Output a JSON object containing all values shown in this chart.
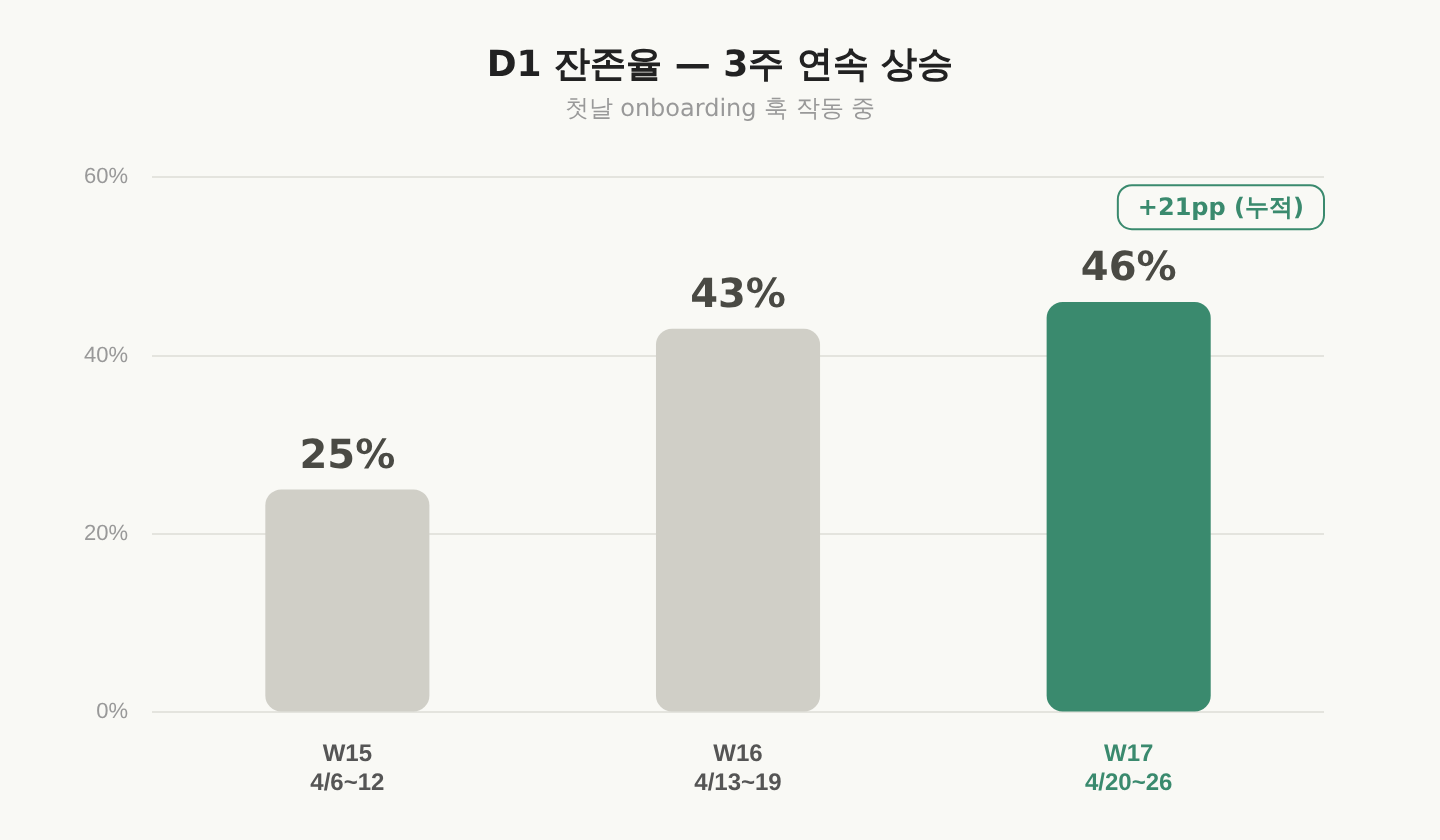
{
  "chart_data": {
    "type": "bar",
    "title": "D1 잔존율 — 3주 연속 상승",
    "subtitle": "첫날 onboarding 훅 작동 중",
    "categories": [
      "W15\n4/6~12",
      "W16\n4/13~19",
      "W17\n4/20~26"
    ],
    "values": [
      25,
      43,
      46
    ],
    "colors": [
      "#d0cfc7",
      "#d0cfc7",
      "#3a8a6e"
    ],
    "ylim": [
      0,
      60
    ],
    "yticks": [
      {
        "value": 0,
        "label": "0%"
      },
      {
        "value": 20,
        "label": "20%"
      },
      {
        "value": 40,
        "label": "40%"
      },
      {
        "value": 60,
        "label": "60%"
      }
    ],
    "grid": "y",
    "legend": false,
    "data_labels": true,
    "value_labels": [
      "25%",
      "43%",
      "46%"
    ],
    "annotations": [
      "+21pp (누적)"
    ]
  }
}
